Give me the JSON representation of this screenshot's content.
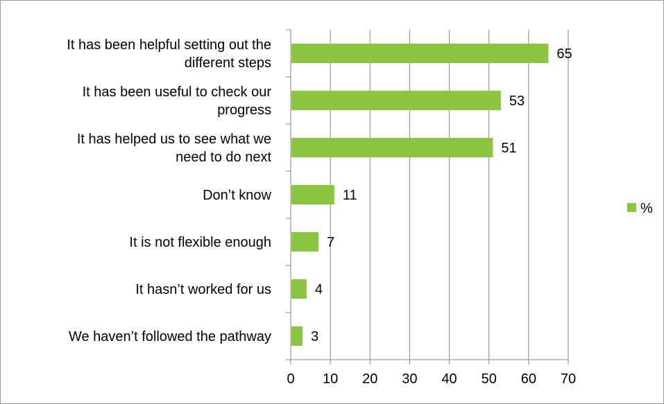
{
  "chart_data": {
    "type": "bar",
    "orientation": "horizontal",
    "categories": [
      "It has been helpful setting out the different steps",
      "It has been useful to check our progress",
      "It has helped us to see what we need to do next",
      "Don’t know",
      "It is not flexible enough",
      "It hasn’t worked for us",
      "We haven’t followed the pathway"
    ],
    "category_lines": [
      [
        "It has been helpful setting out the",
        "different steps"
      ],
      [
        "It has been useful to check our",
        "progress"
      ],
      [
        "It has helped us to see what we",
        "need to do next"
      ],
      [
        "Don’t know"
      ],
      [
        "It is not flexible enough"
      ],
      [
        "It hasn’t worked for us"
      ],
      [
        "We haven’t followed the pathway"
      ]
    ],
    "series": [
      {
        "name": "%",
        "values": [
          65,
          53,
          51,
          11,
          7,
          4,
          3
        ],
        "color": "#8cc641"
      }
    ],
    "xlim": [
      0,
      70
    ],
    "xticks": [
      0,
      10,
      20,
      30,
      40,
      50,
      60,
      70
    ],
    "grid": "vertical",
    "gridline_color": "#868686",
    "axis_color": "#868686",
    "legend_position": "right",
    "data_labels": true
  }
}
